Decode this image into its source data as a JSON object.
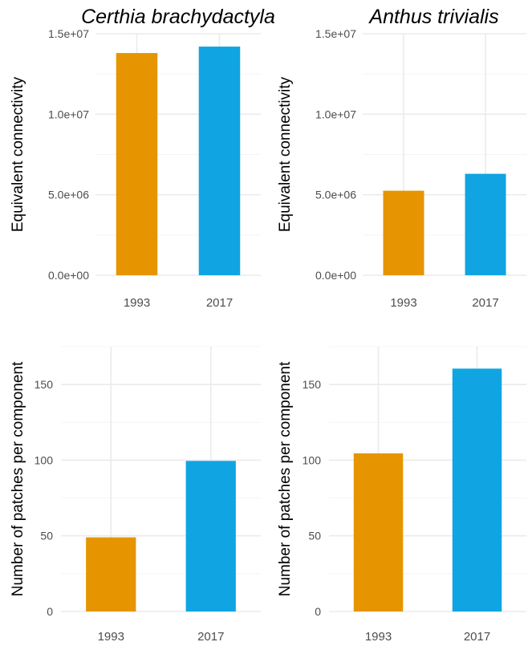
{
  "colors": {
    "y1993": "#E69500",
    "y2017": "#10A5E2"
  },
  "chart_data": [
    {
      "type": "bar",
      "title": "Certhia brachydactyla",
      "ylabel": "Equivalent connectivity",
      "categories": [
        "1993",
        "2017"
      ],
      "values": [
        13800000,
        14200000
      ],
      "ylim": [
        0,
        15000000
      ],
      "yticks": [
        0,
        5000000,
        10000000,
        15000000
      ],
      "ytick_labels": [
        "0.0e+00",
        "5.0e+06",
        "1.0e+07",
        "1.5e+07"
      ],
      "grid": true
    },
    {
      "type": "bar",
      "title": "Anthus trivialis",
      "ylabel": "Equivalent connectivity",
      "categories": [
        "1993",
        "2017"
      ],
      "values": [
        5250000,
        6300000
      ],
      "ylim": [
        0,
        15000000
      ],
      "yticks": [
        0,
        5000000,
        10000000,
        15000000
      ],
      "ytick_labels": [
        "0.0e+00",
        "5.0e+06",
        "1.0e+07",
        "1.5e+07"
      ],
      "grid": true
    },
    {
      "type": "bar",
      "title": "",
      "ylabel": "Number of patches per component",
      "categories": [
        "1993",
        "2017"
      ],
      "values": [
        49,
        99.5
      ],
      "ylim": [
        0,
        175
      ],
      "yticks": [
        0,
        50,
        100,
        150
      ],
      "ytick_labels": [
        "0",
        "50",
        "100",
        "150"
      ],
      "grid": true
    },
    {
      "type": "bar",
      "title": "",
      "ylabel": "Number of patches per component",
      "categories": [
        "1993",
        "2017"
      ],
      "values": [
        104.5,
        160.5
      ],
      "ylim": [
        0,
        175
      ],
      "yticks": [
        0,
        50,
        100,
        150
      ],
      "ytick_labels": [
        "0",
        "50",
        "100",
        "150"
      ],
      "grid": true
    }
  ]
}
